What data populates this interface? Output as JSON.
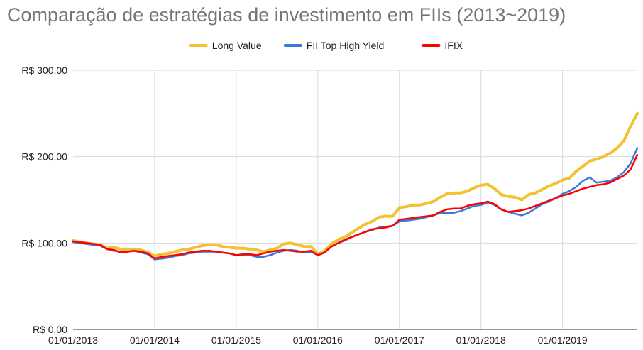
{
  "chart_data": {
    "type": "line",
    "title": "Comparação de estratégias de investimento em FIIs (2013~2019)",
    "xlabel": "",
    "ylabel": "",
    "x_start": "2013-01",
    "x_ticks": [
      "01/01/2013",
      "01/01/2014",
      "01/01/2015",
      "01/01/2016",
      "01/01/2017",
      "01/01/2018",
      "01/01/2019"
    ],
    "x_tick_positions": [
      "2013-01",
      "2014-01",
      "2015-01",
      "2016-01",
      "2017-01",
      "2018-01",
      "2019-01"
    ],
    "ylim": [
      0,
      300
    ],
    "y_ticks": [
      {
        "value": 0,
        "label": "R$ 0,00"
      },
      {
        "value": 100,
        "label": "R$ 100,00"
      },
      {
        "value": 200,
        "label": "R$ 200,00"
      },
      {
        "value": 300,
        "label": "R$ 300,00"
      }
    ],
    "grid": true,
    "legend_position": "top",
    "series": [
      {
        "name": "Long Value",
        "color": "#f1c232",
        "values": [
          103,
          101,
          100,
          99,
          98,
          94,
          95,
          93,
          93,
          93,
          92,
          89,
          85,
          87,
          88,
          90,
          92,
          93,
          95,
          97,
          98,
          98,
          96,
          95,
          94,
          94,
          93,
          92,
          90,
          92,
          94,
          99,
          100,
          98,
          96,
          96,
          87,
          91,
          99,
          104,
          107,
          112,
          117,
          122,
          125,
          130,
          131,
          131,
          141,
          142,
          144,
          144,
          146,
          148,
          153,
          157,
          158,
          158,
          160,
          164,
          167,
          168,
          163,
          156,
          154,
          153,
          150,
          156,
          158,
          162,
          166,
          169,
          173,
          175,
          183,
          189,
          195,
          197,
          200,
          204,
          210,
          218,
          235,
          250
        ]
      },
      {
        "name": "FII Top High Yield",
        "color": "#3c78d8",
        "values": [
          101,
          100,
          99,
          98,
          97,
          93,
          91,
          90,
          90,
          91,
          89,
          87,
          81,
          82,
          83,
          85,
          86,
          88,
          89,
          90,
          90,
          90,
          89,
          88,
          86,
          86,
          86,
          84,
          84,
          86,
          89,
          91,
          92,
          91,
          89,
          90,
          86,
          89,
          96,
          100,
          103,
          107,
          110,
          113,
          115,
          118,
          119,
          120,
          125,
          126,
          127,
          128,
          130,
          132,
          135,
          135,
          135,
          137,
          140,
          143,
          144,
          147,
          144,
          139,
          136,
          134,
          132,
          135,
          140,
          145,
          148,
          152,
          157,
          160,
          165,
          172,
          176,
          170,
          171,
          172,
          176,
          182,
          192,
          210
        ]
      },
      {
        "name": "IFIX",
        "color": "#ff0000",
        "values": [
          102,
          101,
          100,
          99,
          98,
          93,
          92,
          89,
          90,
          91,
          90,
          88,
          82,
          84,
          85,
          86,
          87,
          89,
          90,
          91,
          91,
          90,
          89,
          88,
          86,
          87,
          87,
          86,
          88,
          90,
          91,
          92,
          91,
          90,
          90,
          91,
          86,
          89,
          96,
          100,
          104,
          107,
          110,
          113,
          116,
          117,
          118,
          120,
          127,
          128,
          129,
          130,
          131,
          132,
          136,
          139,
          140,
          140,
          143,
          145,
          146,
          148,
          145,
          139,
          136,
          137,
          138,
          140,
          143,
          146,
          149,
          152,
          155,
          157,
          160,
          163,
          165,
          167,
          168,
          170,
          174,
          178,
          185,
          202
        ]
      }
    ]
  }
}
